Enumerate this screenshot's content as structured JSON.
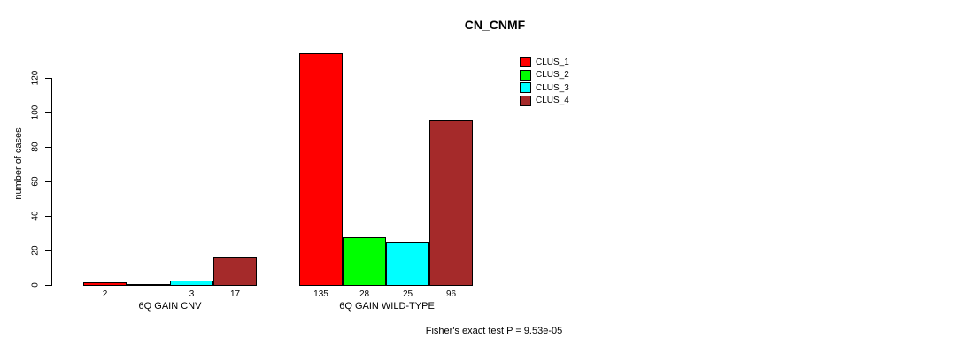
{
  "chart_data": {
    "type": "bar",
    "title": "CN_CNMF",
    "ylabel": "number of cases",
    "xlabel": "",
    "ylim": [
      0,
      140
    ],
    "yticks": [
      0,
      20,
      40,
      60,
      80,
      100,
      120
    ],
    "grid": false,
    "legend_position": "top-right",
    "series_names": [
      "CLUS_1",
      "CLUS_2",
      "CLUS_3",
      "CLUS_4"
    ],
    "colors": [
      "#FF0000",
      "#00FF00",
      "#00FFFF",
      "#A52A2A"
    ],
    "groups": [
      {
        "label": "6Q GAIN CNV",
        "values": [
          2,
          0,
          3,
          17
        ],
        "value_labels": [
          "2",
          "",
          "3",
          "17"
        ]
      },
      {
        "label": "6Q GAIN WILD-TYPE",
        "values": [
          135,
          28,
          25,
          96
        ],
        "value_labels": [
          "135",
          "28",
          "25",
          "96"
        ]
      }
    ],
    "annotation": "Fisher's exact test P = 9.53e-05"
  }
}
